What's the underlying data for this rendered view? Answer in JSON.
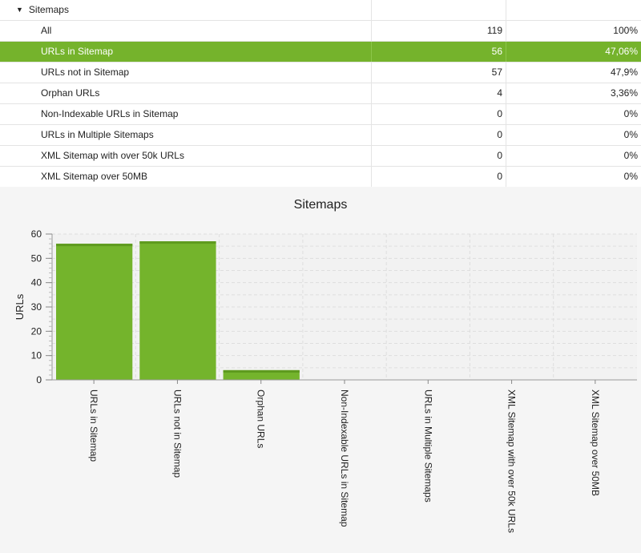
{
  "table": {
    "group_label": "Sitemaps",
    "rows": [
      {
        "label": "All",
        "count": "119",
        "percent": "100%",
        "selected": false
      },
      {
        "label": "URLs in Sitemap",
        "count": "56",
        "percent": "47,06%",
        "selected": true
      },
      {
        "label": "URLs not in Sitemap",
        "count": "57",
        "percent": "47,9%",
        "selected": false
      },
      {
        "label": "Orphan URLs",
        "count": "4",
        "percent": "3,36%",
        "selected": false
      },
      {
        "label": "Non-Indexable URLs in Sitemap",
        "count": "0",
        "percent": "0%",
        "selected": false
      },
      {
        "label": "URLs in Multiple Sitemaps",
        "count": "0",
        "percent": "0%",
        "selected": false
      },
      {
        "label": "XML Sitemap with over 50k URLs",
        "count": "0",
        "percent": "0%",
        "selected": false
      },
      {
        "label": "XML Sitemap over 50MB",
        "count": "0",
        "percent": "0%",
        "selected": false
      }
    ]
  },
  "chart_data": {
    "type": "bar",
    "title": "Sitemaps",
    "xlabel": "",
    "ylabel": "URLs",
    "categories": [
      "URLs in Sitemap",
      "URLs not in Sitemap",
      "Orphan URLs",
      "Non-Indexable URLs in Sitemap",
      "URLs in Multiple Sitemaps",
      "XML Sitemap with over 50k URLs",
      "XML Sitemap over 50MB"
    ],
    "values": [
      56,
      57,
      4,
      0,
      0,
      0,
      0
    ],
    "ylim": [
      0,
      60
    ],
    "yticks": [
      0,
      10,
      20,
      30,
      40,
      50,
      60
    ],
    "grid": true,
    "legend": "none",
    "bar_color": "#74b42c"
  },
  "colors": {
    "selected_row": "#75b32c",
    "bar": "#74b42c"
  }
}
